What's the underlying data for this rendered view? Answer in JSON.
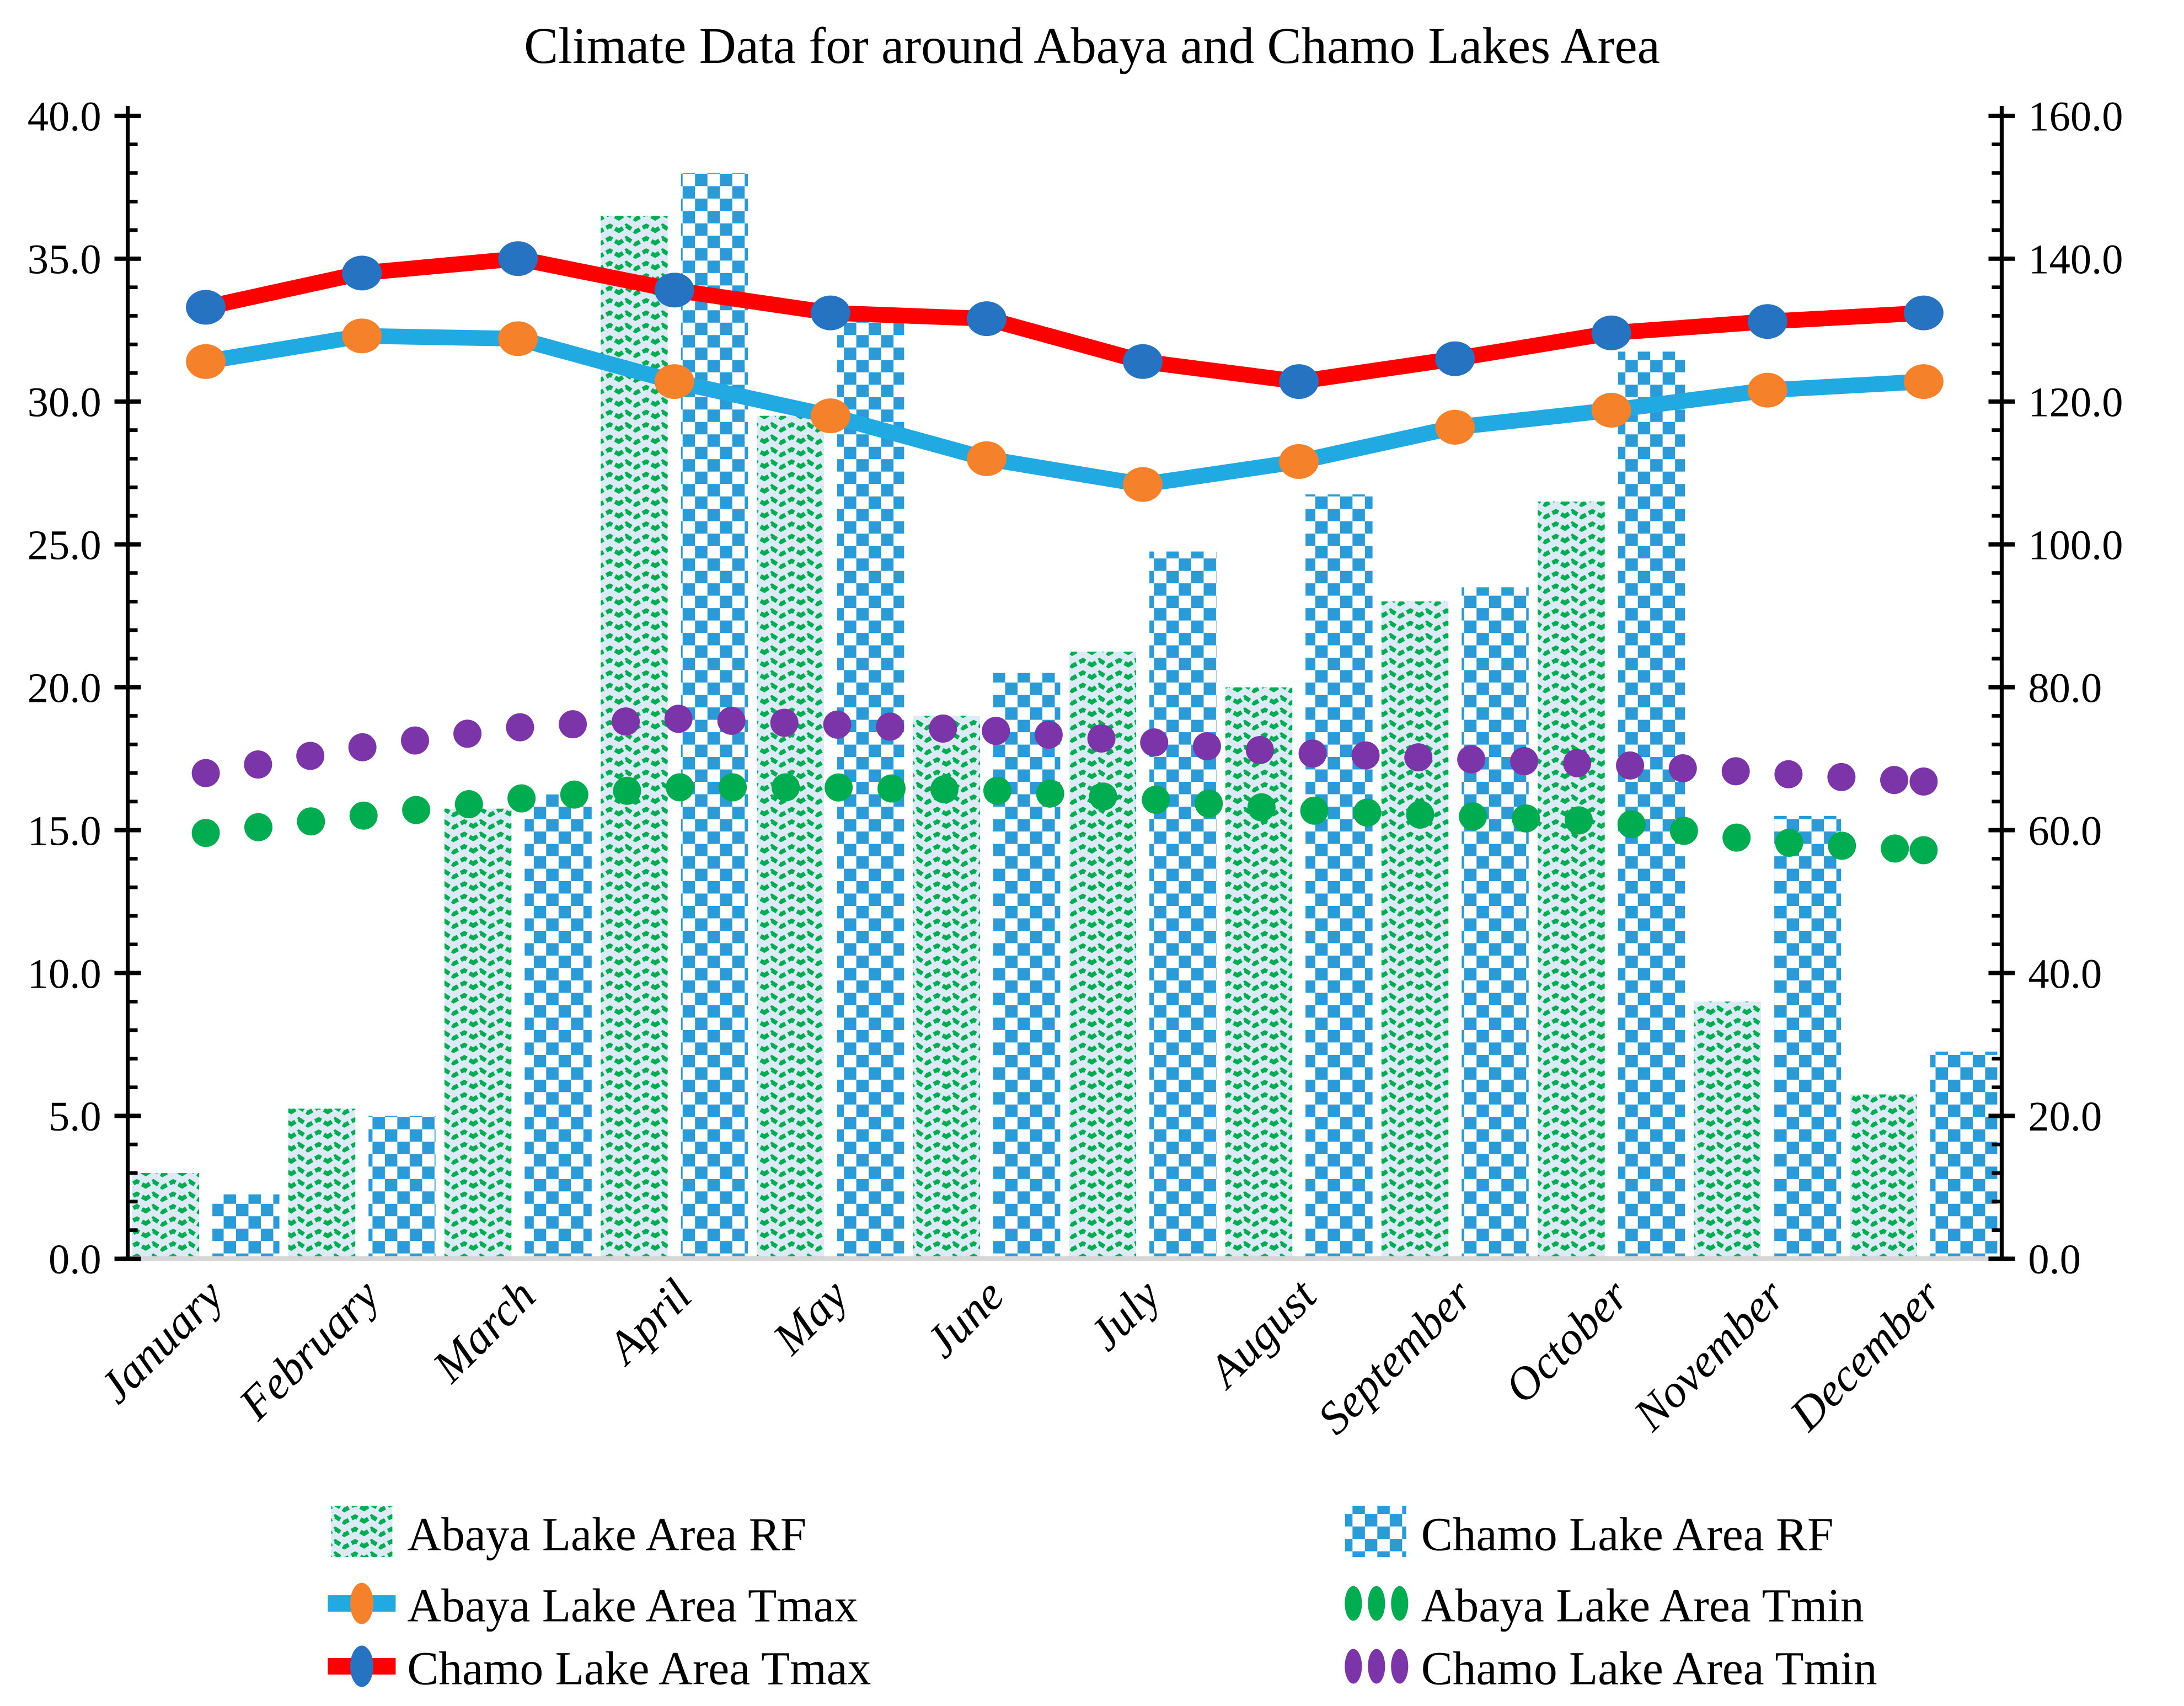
{
  "chart_data": {
    "type": "combo",
    "title": "Climate Data for around Abaya and Chamo Lakes Area",
    "categories": [
      "January",
      "February",
      "March",
      "April",
      "May",
      "June",
      "July",
      "August",
      "September",
      "October",
      "November",
      "December"
    ],
    "left_axis": {
      "label": "",
      "min": 0,
      "max": 40,
      "major_step": 5,
      "minor_step": 1,
      "tick_labels": [
        "0.0",
        "5.0",
        "10.0",
        "15.0",
        "20.0",
        "25.0",
        "30.0",
        "35.0",
        "40.0"
      ]
    },
    "right_axis": {
      "label": "",
      "min": 0,
      "max": 160,
      "major_step": 20,
      "minor_step": 4,
      "tick_labels": [
        "0.0",
        "20.0",
        "40.0",
        "60.0",
        "80.0",
        "100.0",
        "120.0",
        "140.0",
        "160.0"
      ]
    },
    "grid": "off",
    "legend_position": "bottom-two-columns",
    "series": [
      {
        "name": "Abaya Lake Area RF",
        "kind": "bar",
        "axis": "right",
        "values": [
          12,
          21,
          63,
          146,
          118,
          76,
          85,
          80,
          92,
          106,
          36,
          23
        ],
        "swatch": "green-wave-pattern"
      },
      {
        "name": "Chamo Lake Area RF",
        "kind": "bar",
        "axis": "right",
        "values": [
          9,
          20,
          65,
          152,
          133,
          82,
          99,
          107,
          94,
          127,
          62,
          29
        ],
        "swatch": "blue-checker-pattern"
      },
      {
        "name": "Abaya Lake Area Tmax",
        "kind": "line",
        "axis": "left",
        "values": [
          31.4,
          32.3,
          32.2,
          30.7,
          29.5,
          28.0,
          27.1,
          27.9,
          29.1,
          29.7,
          30.4,
          30.7
        ],
        "line_color": "#21A9E1",
        "marker_color": "#F5822A"
      },
      {
        "name": "Abaya Lake Area Tmin",
        "kind": "dotted",
        "axis": "left",
        "values": [
          14.9,
          15.5,
          16.1,
          16.5,
          16.5,
          16.4,
          16.1,
          15.7,
          15.5,
          15.3,
          14.6,
          14.3
        ],
        "dot_color": "#00AC50"
      },
      {
        "name": "Chamo Lake Area Tmax",
        "kind": "line",
        "axis": "left",
        "values": [
          33.3,
          34.5,
          35.0,
          33.9,
          33.1,
          32.9,
          31.4,
          30.7,
          31.5,
          32.4,
          32.8,
          33.1
        ],
        "line_color": "#FE0000",
        "marker_color": "#2673C2"
      },
      {
        "name": "Chamo Lake Area Tmin",
        "kind": "dotted",
        "axis": "left",
        "values": [
          17.0,
          17.9,
          18.6,
          18.9,
          18.7,
          18.5,
          18.1,
          17.7,
          17.5,
          17.3,
          17.0,
          16.7
        ],
        "dot_color": "#7C35A8"
      }
    ],
    "colors": {
      "checker_blue": "#2B9BD8",
      "wave_green": "#00AC50",
      "wave_bg": "#DCEAF6",
      "axis_black": "#000000",
      "baseline_gray": "#D6D6D6"
    }
  }
}
